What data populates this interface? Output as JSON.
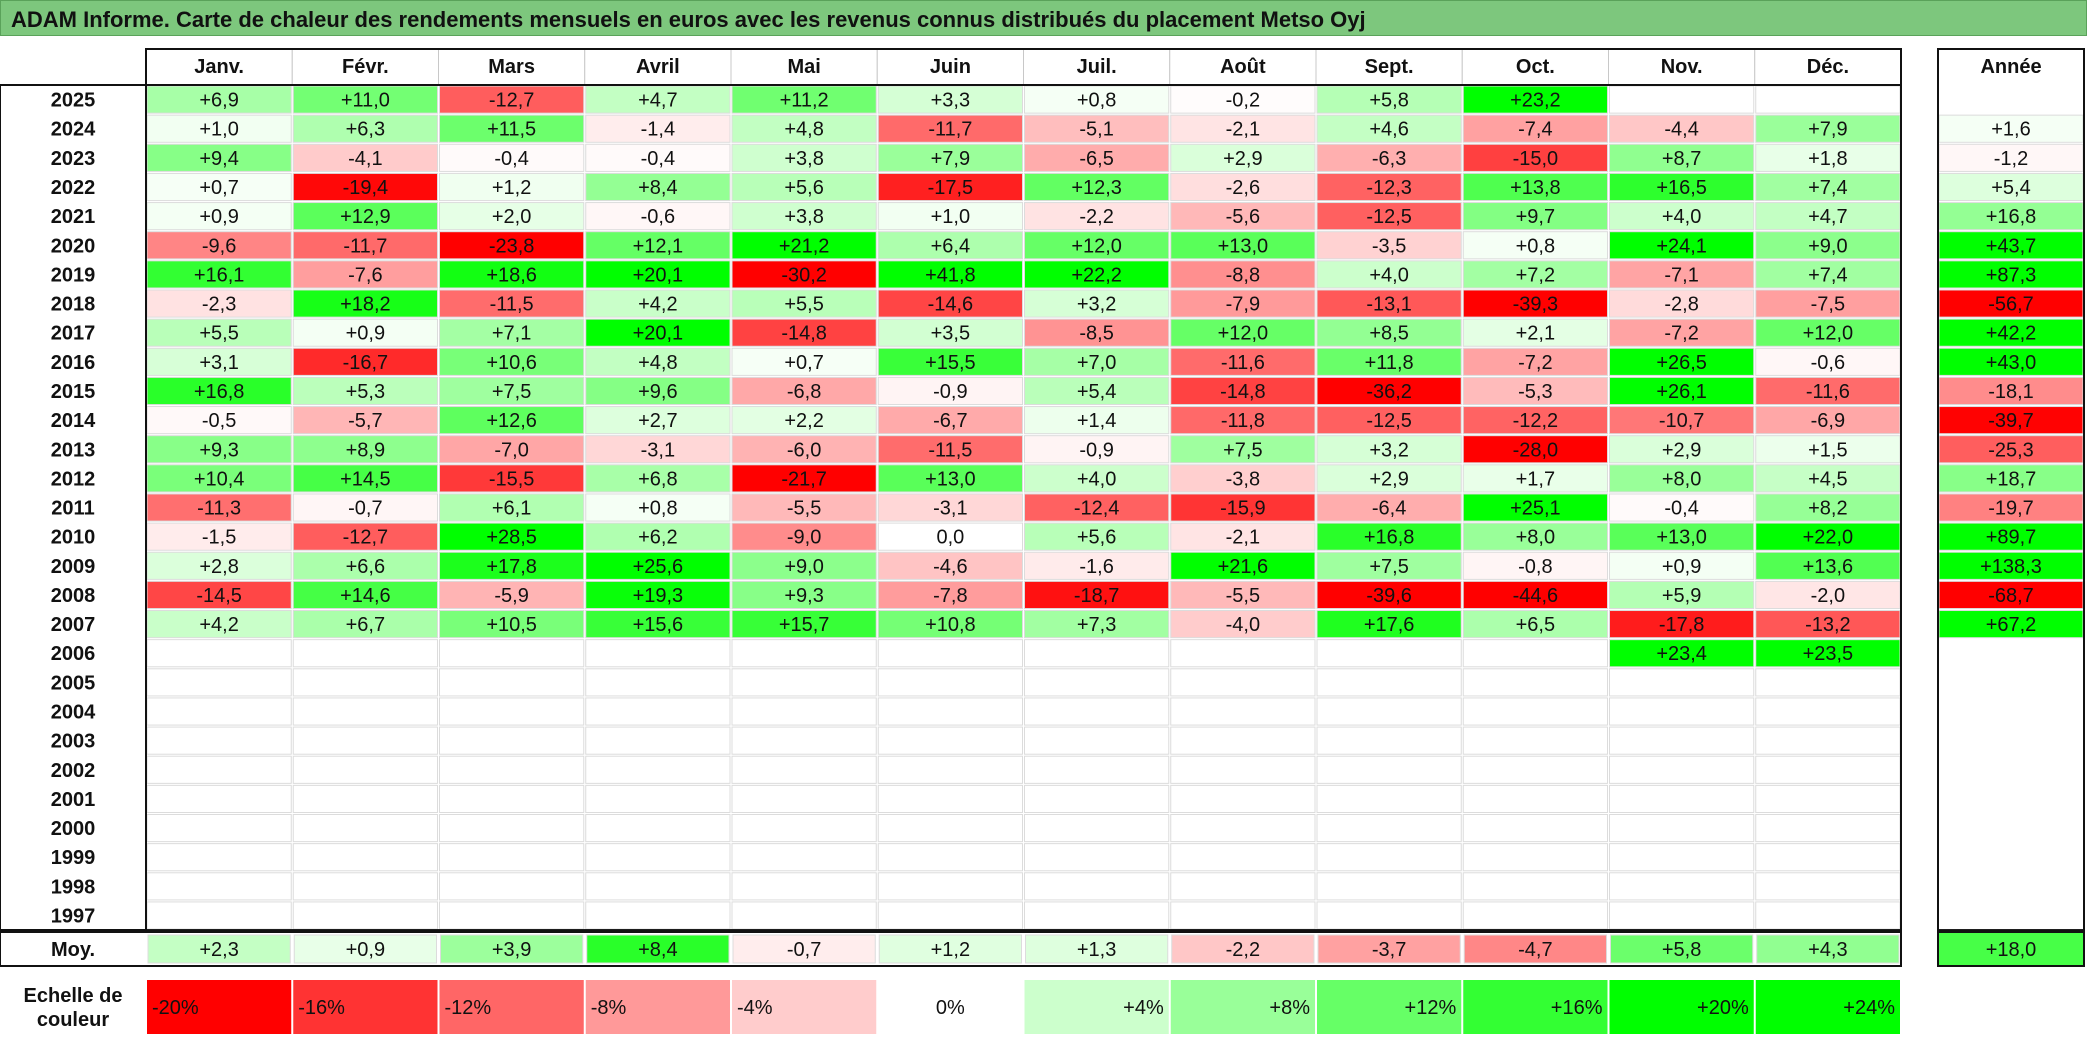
{
  "title": "ADAM Informe. Carte de chaleur des rendements mensuels en euros avec les revenus connus distribués du placement Metso Oyj",
  "chart_data": {
    "type": "heatmap",
    "title": "ADAM Informe. Carte de chaleur des rendements mensuels en euros avec les revenus connus distribués du placement Metso Oyj",
    "columns": [
      "Janv.",
      "Févr.",
      "Mars",
      "Avril",
      "Mai",
      "Juin",
      "Juil.",
      "Août",
      "Sept.",
      "Oct.",
      "Nov.",
      "Déc."
    ],
    "year_column_label": "Année",
    "rows": [
      {
        "year": "2025",
        "values": [
          "+6,9",
          "+11,0",
          "-12,7",
          "+4,7",
          "+11,2",
          "+3,3",
          "+0,8",
          "-0,2",
          "+5,8",
          "+23,2",
          "",
          ""
        ],
        "annual": ""
      },
      {
        "year": "2024",
        "values": [
          "+1,0",
          "+6,3",
          "+11,5",
          "-1,4",
          "+4,8",
          "-11,7",
          "-5,1",
          "-2,1",
          "+4,6",
          "-7,4",
          "-4,4",
          "+7,9"
        ],
        "annual": "+1,6"
      },
      {
        "year": "2023",
        "values": [
          "+9,4",
          "-4,1",
          "-0,4",
          "-0,4",
          "+3,8",
          "+7,9",
          "-6,5",
          "+2,9",
          "-6,3",
          "-15,0",
          "+8,7",
          "+1,8"
        ],
        "annual": "-1,2"
      },
      {
        "year": "2022",
        "values": [
          "+0,7",
          "-19,4",
          "+1,2",
          "+8,4",
          "+5,6",
          "-17,5",
          "+12,3",
          "-2,6",
          "-12,3",
          "+13,8",
          "+16,5",
          "+7,4"
        ],
        "annual": "+5,4"
      },
      {
        "year": "2021",
        "values": [
          "+0,9",
          "+12,9",
          "+2,0",
          "-0,6",
          "+3,8",
          "+1,0",
          "-2,2",
          "-5,6",
          "-12,5",
          "+9,7",
          "+4,0",
          "+4,7"
        ],
        "annual": "+16,8"
      },
      {
        "year": "2020",
        "values": [
          "-9,6",
          "-11,7",
          "-23,8",
          "+12,1",
          "+21,2",
          "+6,4",
          "+12,0",
          "+13,0",
          "-3,5",
          "+0,8",
          "+24,1",
          "+9,0"
        ],
        "annual": "+43,7"
      },
      {
        "year": "2019",
        "values": [
          "+16,1",
          "-7,6",
          "+18,6",
          "+20,1",
          "-30,2",
          "+41,8",
          "+22,2",
          "-8,8",
          "+4,0",
          "+7,2",
          "-7,1",
          "+7,4"
        ],
        "annual": "+87,3"
      },
      {
        "year": "2018",
        "values": [
          "-2,3",
          "+18,2",
          "-11,5",
          "+4,2",
          "+5,5",
          "-14,6",
          "+3,2",
          "-7,9",
          "-13,1",
          "-39,3",
          "-2,8",
          "-7,5"
        ],
        "annual": "-56,7"
      },
      {
        "year": "2017",
        "values": [
          "+5,5",
          "+0,9",
          "+7,1",
          "+20,1",
          "-14,8",
          "+3,5",
          "-8,5",
          "+12,0",
          "+8,5",
          "+2,1",
          "-7,2",
          "+12,0"
        ],
        "annual": "+42,2"
      },
      {
        "year": "2016",
        "values": [
          "+3,1",
          "-16,7",
          "+10,6",
          "+4,8",
          "+0,7",
          "+15,5",
          "+7,0",
          "-11,6",
          "+11,8",
          "-7,2",
          "+26,5",
          "-0,6"
        ],
        "annual": "+43,0"
      },
      {
        "year": "2015",
        "values": [
          "+16,8",
          "+5,3",
          "+7,5",
          "+9,6",
          "-6,8",
          "-0,9",
          "+5,4",
          "-14,8",
          "-36,2",
          "-5,3",
          "+26,1",
          "-11,6"
        ],
        "annual": "-18,1"
      },
      {
        "year": "2014",
        "values": [
          "-0,5",
          "-5,7",
          "+12,6",
          "+2,7",
          "+2,2",
          "-6,7",
          "+1,4",
          "-11,8",
          "-12,5",
          "-12,2",
          "-10,7",
          "-6,9"
        ],
        "annual": "-39,7"
      },
      {
        "year": "2013",
        "values": [
          "+9,3",
          "+8,9",
          "-7,0",
          "-3,1",
          "-6,0",
          "-11,5",
          "-0,9",
          "+7,5",
          "+3,2",
          "-28,0",
          "+2,9",
          "+1,5"
        ],
        "annual": "-25,3"
      },
      {
        "year": "2012",
        "values": [
          "+10,4",
          "+14,5",
          "-15,5",
          "+6,8",
          "-21,7",
          "+13,0",
          "+4,0",
          "-3,8",
          "+2,9",
          "+1,7",
          "+8,0",
          "+4,5"
        ],
        "annual": "+18,7"
      },
      {
        "year": "2011",
        "values": [
          "-11,3",
          "-0,7",
          "+6,1",
          "+0,8",
          "-5,5",
          "-3,1",
          "-12,4",
          "-15,9",
          "-6,4",
          "+25,1",
          "-0,4",
          "+8,2"
        ],
        "annual": "-19,7"
      },
      {
        "year": "2010",
        "values": [
          "-1,5",
          "-12,7",
          "+28,5",
          "+6,2",
          "-9,0",
          "0,0",
          "+5,6",
          "-2,1",
          "+16,8",
          "+8,0",
          "+13,0",
          "+22,0"
        ],
        "annual": "+89,7"
      },
      {
        "year": "2009",
        "values": [
          "+2,8",
          "+6,6",
          "+17,8",
          "+25,6",
          "+9,0",
          "-4,6",
          "-1,6",
          "+21,6",
          "+7,5",
          "-0,8",
          "+0,9",
          "+13,6"
        ],
        "annual": "+138,3"
      },
      {
        "year": "2008",
        "values": [
          "-14,5",
          "+14,6",
          "-5,9",
          "+19,3",
          "+9,3",
          "-7,8",
          "-18,7",
          "-5,5",
          "-39,6",
          "-44,6",
          "+5,9",
          "-2,0"
        ],
        "annual": "-68,7"
      },
      {
        "year": "2007",
        "values": [
          "+4,2",
          "+6,7",
          "+10,5",
          "+15,6",
          "+15,7",
          "+10,8",
          "+7,3",
          "-4,0",
          "+17,6",
          "+6,5",
          "-17,8",
          "-13,2"
        ],
        "annual": "+67,2"
      },
      {
        "year": "2006",
        "values": [
          "",
          "",
          "",
          "",
          "",
          "",
          "",
          "",
          "",
          "",
          "+23,4",
          "+23,5"
        ],
        "annual": ""
      },
      {
        "year": "2005",
        "values": [
          "",
          "",
          "",
          "",
          "",
          "",
          "",
          "",
          "",
          "",
          "",
          ""
        ],
        "annual": ""
      },
      {
        "year": "2004",
        "values": [
          "",
          "",
          "",
          "",
          "",
          "",
          "",
          "",
          "",
          "",
          "",
          ""
        ],
        "annual": ""
      },
      {
        "year": "2003",
        "values": [
          "",
          "",
          "",
          "",
          "",
          "",
          "",
          "",
          "",
          "",
          "",
          ""
        ],
        "annual": ""
      },
      {
        "year": "2002",
        "values": [
          "",
          "",
          "",
          "",
          "",
          "",
          "",
          "",
          "",
          "",
          "",
          ""
        ],
        "annual": ""
      },
      {
        "year": "2001",
        "values": [
          "",
          "",
          "",
          "",
          "",
          "",
          "",
          "",
          "",
          "",
          "",
          ""
        ],
        "annual": ""
      },
      {
        "year": "2000",
        "values": [
          "",
          "",
          "",
          "",
          "",
          "",
          "",
          "",
          "",
          "",
          "",
          ""
        ],
        "annual": ""
      },
      {
        "year": "1999",
        "values": [
          "",
          "",
          "",
          "",
          "",
          "",
          "",
          "",
          "",
          "",
          "",
          ""
        ],
        "annual": ""
      },
      {
        "year": "1998",
        "values": [
          "",
          "",
          "",
          "",
          "",
          "",
          "",
          "",
          "",
          "",
          "",
          ""
        ],
        "annual": ""
      },
      {
        "year": "1997",
        "values": [
          "",
          "",
          "",
          "",
          "",
          "",
          "",
          "",
          "",
          "",
          "",
          ""
        ],
        "annual": ""
      }
    ],
    "average": {
      "label": "Moy.",
      "values": [
        "+2,3",
        "+0,9",
        "+3,9",
        "+8,4",
        "-0,7",
        "+1,2",
        "+1,3",
        "-2,2",
        "-3,7",
        "-4,7",
        "+5,8",
        "+4,3"
      ],
      "annual": "+18,0"
    },
    "color_scale": {
      "label": "Echelle de couleur",
      "stops": [
        "-20%",
        "-16%",
        "-12%",
        "-8%",
        "-4%",
        "0%",
        "+4%",
        "+8%",
        "+12%",
        "+16%",
        "+20%",
        "+24%"
      ],
      "stop_values": [
        -20,
        -16,
        -12,
        -8,
        -4,
        0,
        4,
        8,
        12,
        16,
        20,
        24
      ],
      "negative_color": "#ff0000",
      "positive_color": "#00ff00",
      "neutral_color": "#ffffff"
    }
  }
}
